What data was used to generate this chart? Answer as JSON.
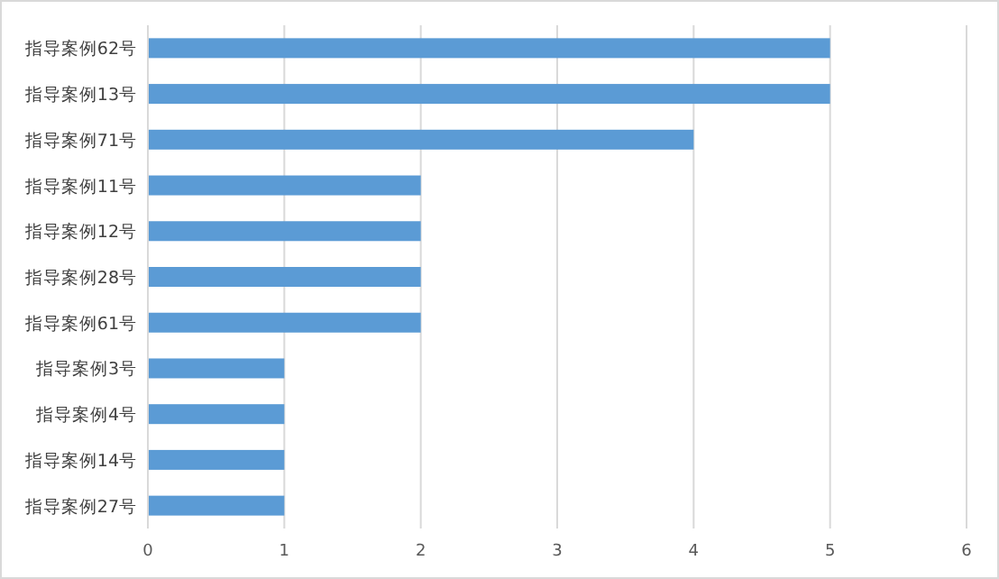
{
  "chart_data": {
    "type": "bar",
    "orientation": "horizontal",
    "categories": [
      "指导案例62号",
      "指导案例13号",
      "指导案例71号",
      "指导案例11号",
      "指导案例12号",
      "指导案例28号",
      "指导案例61号",
      "指导案例3号",
      "指导案例4号",
      "指导案例14号",
      "指导案例27号"
    ],
    "values": [
      5,
      5,
      4,
      2,
      2,
      2,
      2,
      1,
      1,
      1,
      1
    ],
    "color": "#5b9bd5",
    "xlim": [
      0,
      6
    ],
    "xticks": [
      0,
      1,
      2,
      3,
      4,
      5,
      6
    ],
    "grid": "x"
  }
}
